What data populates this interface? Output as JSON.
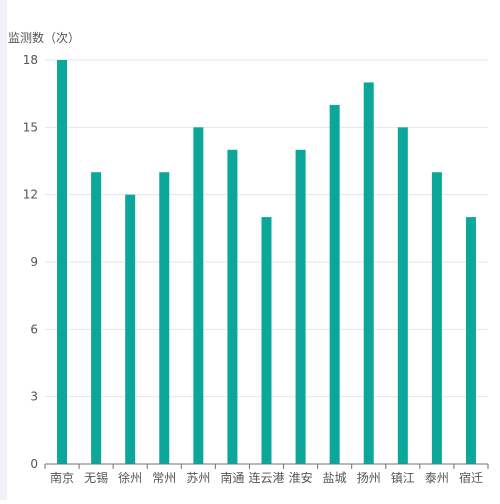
{
  "chart_data": {
    "type": "bar",
    "ylabel": "监测数（次）",
    "categories": [
      "南京",
      "无锡",
      "徐州",
      "常州",
      "苏州",
      "南通",
      "连云港",
      "淮安",
      "盐城",
      "扬州",
      "镇江",
      "泰州",
      "宿迁"
    ],
    "values": [
      18,
      13,
      12,
      13,
      15,
      14,
      11,
      14,
      16,
      17,
      15,
      13,
      11
    ],
    "ylim": [
      0,
      18
    ],
    "yticks": [
      0,
      3,
      6,
      9,
      12,
      15,
      18
    ],
    "grid": true,
    "bar_color": "#0aa79a"
  }
}
